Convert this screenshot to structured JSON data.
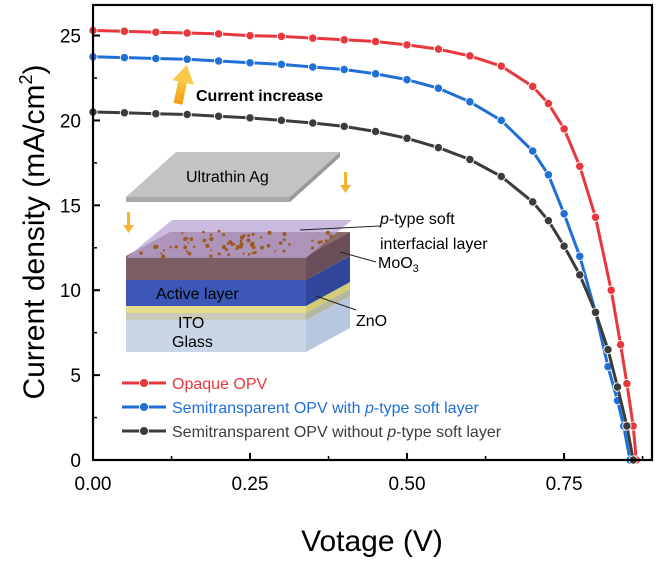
{
  "chart_data": {
    "type": "line",
    "xlabel": "Votage (V)",
    "ylabel": "Current density (mA/cm",
    "ylabel_sup": "2",
    "ylabel_end": ")",
    "xlim": [
      0,
      0.89
    ],
    "ylim": [
      0,
      26.8
    ],
    "xticks": [
      0.0,
      0.25,
      0.5,
      0.75
    ],
    "xtick_labels": [
      "0.00",
      "0.25",
      "0.50",
      "0.75"
    ],
    "yticks": [
      0,
      5,
      10,
      15,
      20,
      25
    ],
    "ytick_labels": [
      "0",
      "5",
      "10",
      "15",
      "20",
      "25"
    ],
    "grid": false,
    "legend_position": "bottom-left",
    "series": [
      {
        "name": "Opaque OPV",
        "color": "#e8373d",
        "x": [
          0.0,
          0.05,
          0.1,
          0.15,
          0.2,
          0.25,
          0.3,
          0.35,
          0.4,
          0.45,
          0.5,
          0.55,
          0.6,
          0.65,
          0.7,
          0.725,
          0.75,
          0.775,
          0.8,
          0.825,
          0.84,
          0.85,
          0.86,
          0.865
        ],
        "y": [
          25.3,
          25.25,
          25.2,
          25.15,
          25.1,
          25.0,
          24.95,
          24.85,
          24.75,
          24.65,
          24.45,
          24.2,
          23.8,
          23.2,
          22.0,
          21.0,
          19.5,
          17.3,
          14.3,
          10.0,
          6.8,
          4.5,
          2.0,
          0.0
        ]
      },
      {
        "name": "Semitransparent OPV with p-type soft layer",
        "name_parts": [
          "Semitransparent OPV with ",
          "p",
          "-type soft layer"
        ],
        "color": "#1f6fd6",
        "x": [
          0.0,
          0.05,
          0.1,
          0.15,
          0.2,
          0.25,
          0.3,
          0.35,
          0.4,
          0.45,
          0.5,
          0.55,
          0.6,
          0.65,
          0.7,
          0.725,
          0.75,
          0.775,
          0.8,
          0.82,
          0.835,
          0.845,
          0.855
        ],
        "y": [
          23.75,
          23.7,
          23.65,
          23.6,
          23.5,
          23.4,
          23.3,
          23.15,
          23.0,
          22.75,
          22.4,
          21.9,
          21.1,
          20.0,
          18.2,
          16.8,
          14.5,
          12.0,
          8.7,
          5.5,
          3.5,
          2.0,
          0.0
        ]
      },
      {
        "name": "Semitransparent OPV without p-type soft layer",
        "name_parts": [
          "Semitransparent OPV without ",
          "p",
          "-type soft layer"
        ],
        "color": "#3c3c3c",
        "x": [
          0.0,
          0.05,
          0.1,
          0.15,
          0.2,
          0.25,
          0.3,
          0.35,
          0.4,
          0.45,
          0.5,
          0.55,
          0.6,
          0.65,
          0.7,
          0.725,
          0.75,
          0.775,
          0.8,
          0.82,
          0.835,
          0.85,
          0.86
        ],
        "y": [
          20.5,
          20.45,
          20.4,
          20.35,
          20.25,
          20.15,
          20.0,
          19.85,
          19.65,
          19.35,
          18.95,
          18.4,
          17.7,
          16.7,
          15.2,
          14.1,
          12.6,
          10.9,
          8.7,
          6.5,
          4.3,
          2.0,
          0.0
        ]
      }
    ],
    "annotations": [
      {
        "text": "Current increase"
      }
    ]
  },
  "inset": {
    "labels": {
      "ultrathin_ag": "Ultrathin Ag",
      "p_prefix": "p",
      "soft_line1_rest": "-type soft",
      "soft_line2": "interfacial layer",
      "moo3_main": "MoO",
      "moo3_sub": "3",
      "active_layer": "Active layer",
      "zno": "ZnO",
      "ito": "ITO",
      "glass": "Glass"
    },
    "colors": {
      "ag": "#bdbdbd",
      "soft_layer": "#b9a3d6",
      "moo3": "#8a6a64",
      "active": "#3c57b8",
      "zno": "#e4dd8c",
      "ito": "#c9c9b7",
      "glass": "#c9d6e8",
      "arrow": "#f5b430"
    }
  }
}
